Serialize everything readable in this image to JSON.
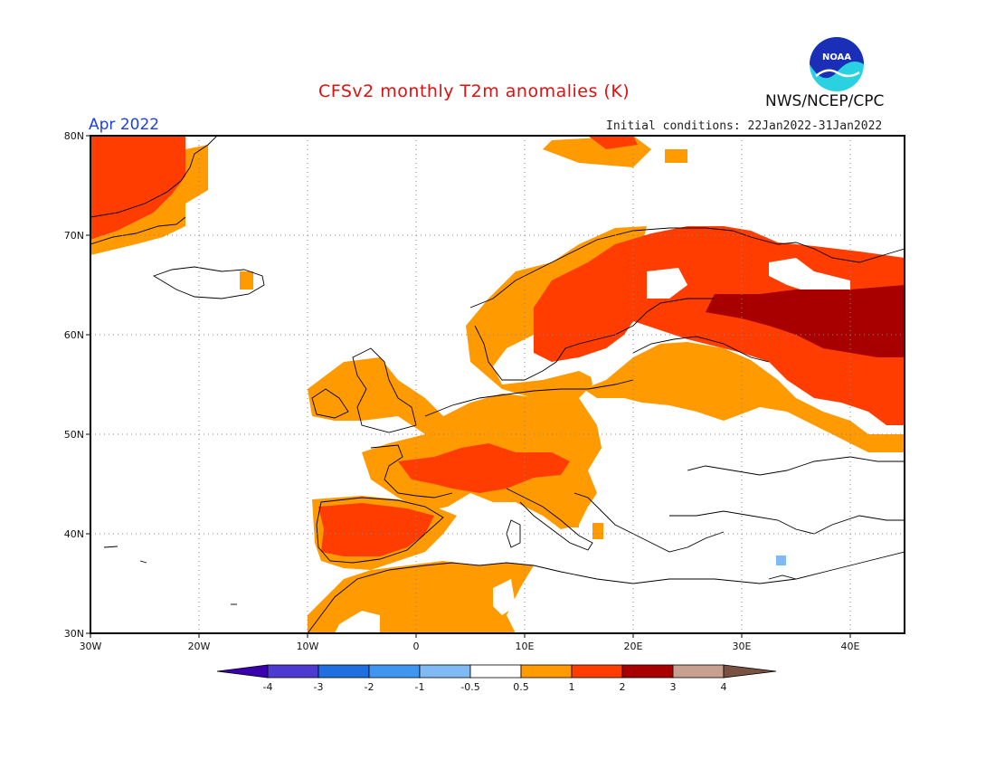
{
  "header": {
    "title": "CFSv2 monthly T2m anomalies (K)",
    "org": "NWS/NCEP/CPC",
    "valid_month": "Apr 2022",
    "initial_conditions": "Initial conditions: 22Jan2022-31Jan2022",
    "logo_text": "NOAA"
  },
  "map": {
    "lon_range": [
      -30,
      45
    ],
    "lat_range": [
      30,
      80
    ],
    "lon_ticks": [
      "30W",
      "20W",
      "10W",
      "0",
      "10E",
      "20E",
      "30E",
      "40E"
    ],
    "lat_ticks": [
      "30N",
      "40N",
      "50N",
      "60N",
      "70N",
      "80N"
    ],
    "gridlines": "dotted"
  },
  "colorbar": {
    "labels": [
      "-4",
      "-3",
      "-2",
      "-1",
      "-0.5",
      "0.5",
      "1",
      "2",
      "3",
      "4"
    ],
    "colors": [
      "#3a00b0",
      "#4d3ad0",
      "#1f6fe0",
      "#3f96f0",
      "#7fbaf5",
      "#ffffff",
      "#ff9a00",
      "#ff3d00",
      "#a80000",
      "#c8a090",
      "#7a5040"
    ]
  },
  "legend_colors": {
    "anom_0_5_to_1": "#ff9a00",
    "anom_1_to_2": "#ff3d00",
    "anom_2_to_3": "#a80000",
    "anom_neg_1_to_neg_0_5": "#7fbaf5"
  }
}
